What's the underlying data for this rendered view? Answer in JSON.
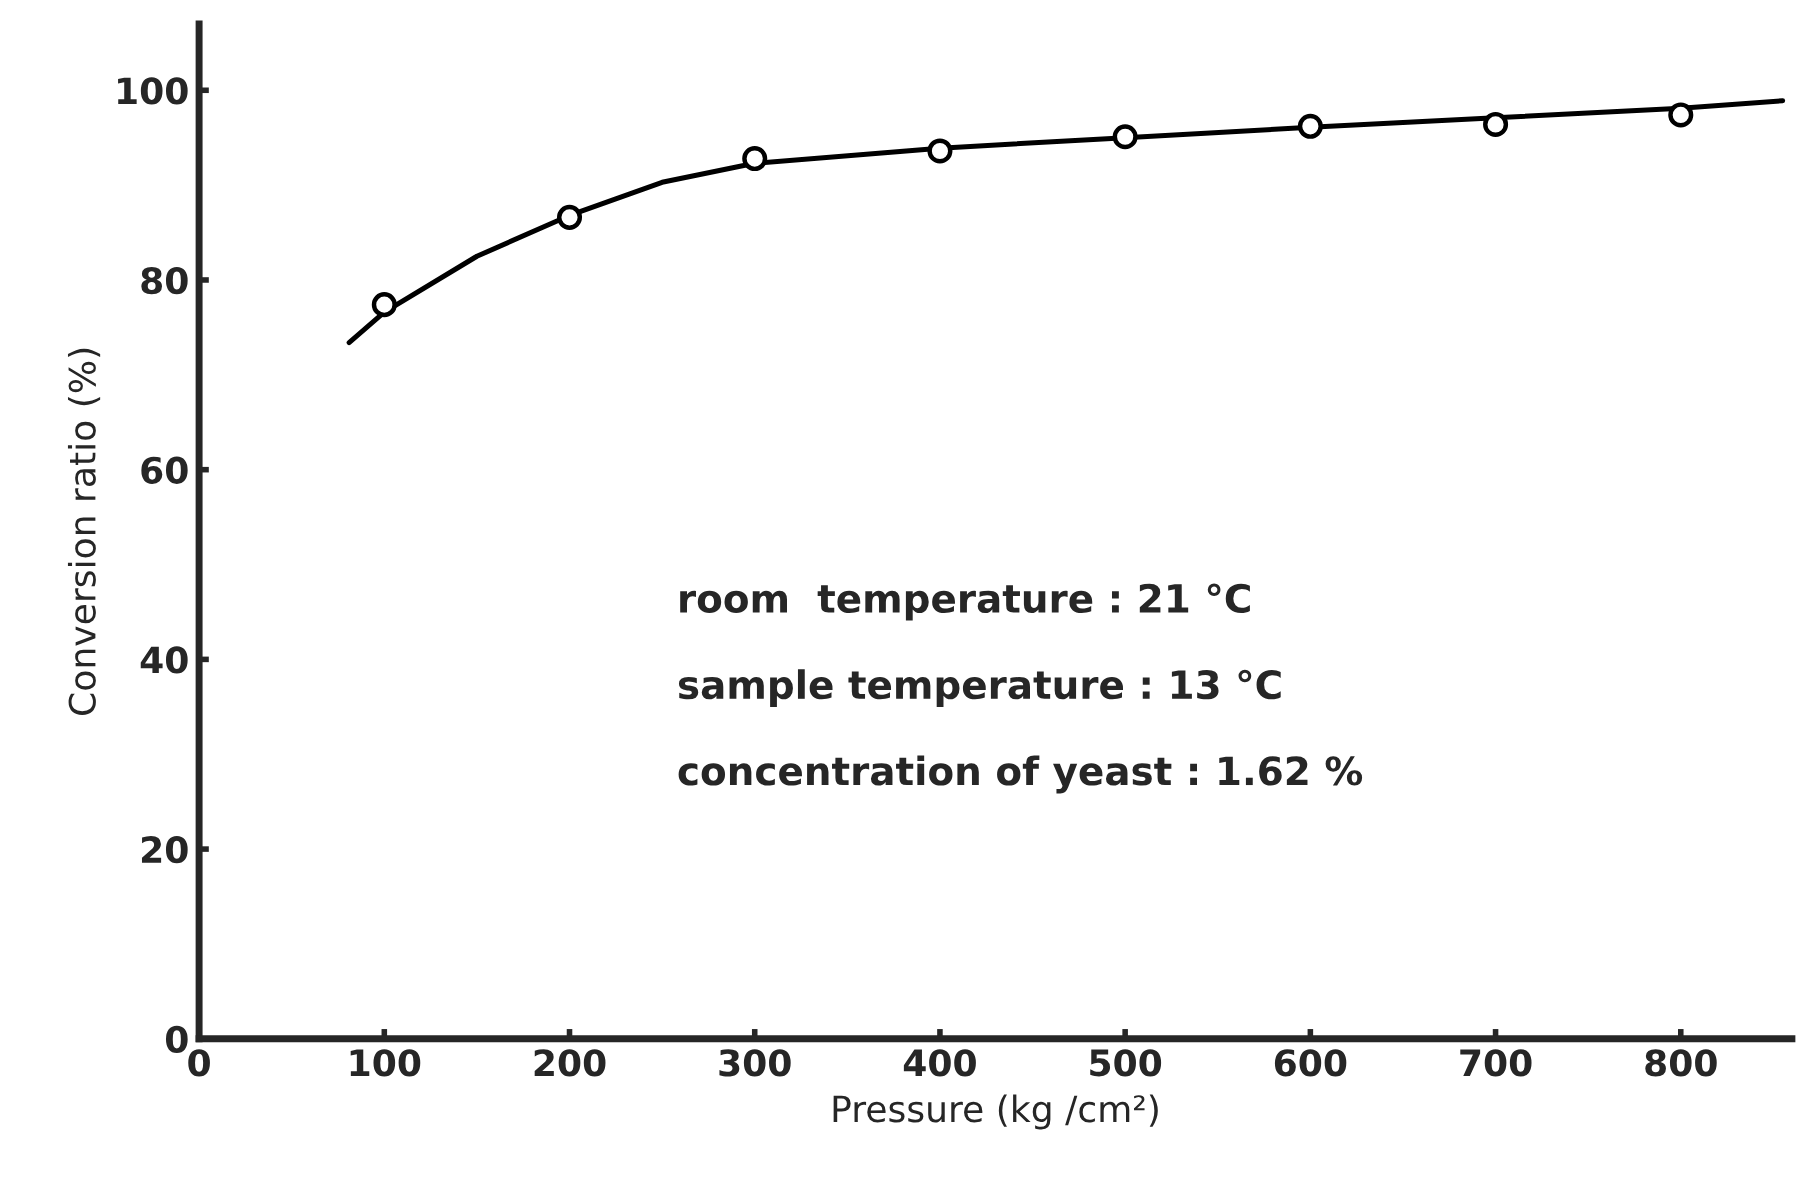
{
  "chart_data": {
    "type": "scatter",
    "xlabel": "Pressure (kg /cm²)",
    "ylabel": "Conversion ratio (%)",
    "series": [
      {
        "color": "#000000",
        "marker": "circle",
        "x": [
          100,
          200,
          300,
          400,
          500,
          600,
          700,
          800
        ],
        "values": [
          77.4,
          86.6,
          92.8,
          93.6,
          95.1,
          96.2,
          96.4,
          97.4
        ]
      },
      {
        "type": "line",
        "color": "#000000",
        "marker": "none",
        "line_style": "solid",
        "x": [
          81,
          100,
          150,
          200,
          250,
          300,
          400,
          500,
          600,
          700,
          800,
          855
        ],
        "values": [
          73.4,
          76.6,
          82.5,
          86.8,
          90.3,
          92.3,
          93.9,
          95.0,
          96.1,
          97.1,
          98.1,
          98.9
        ]
      }
    ],
    "xlim": [
      0,
      860
    ],
    "ylim": [
      0,
      107
    ],
    "xticks": [
      0,
      100,
      200,
      300,
      400,
      500,
      600,
      700,
      800
    ],
    "yticks": [
      0,
      20,
      40,
      60,
      80,
      100
    ],
    "annotations": [
      "room  temperature : 21 °C",
      "sample temperature : 13 °C",
      "concentration of yeast : 1.62 %"
    ],
    "grid": false,
    "legend": false
  }
}
